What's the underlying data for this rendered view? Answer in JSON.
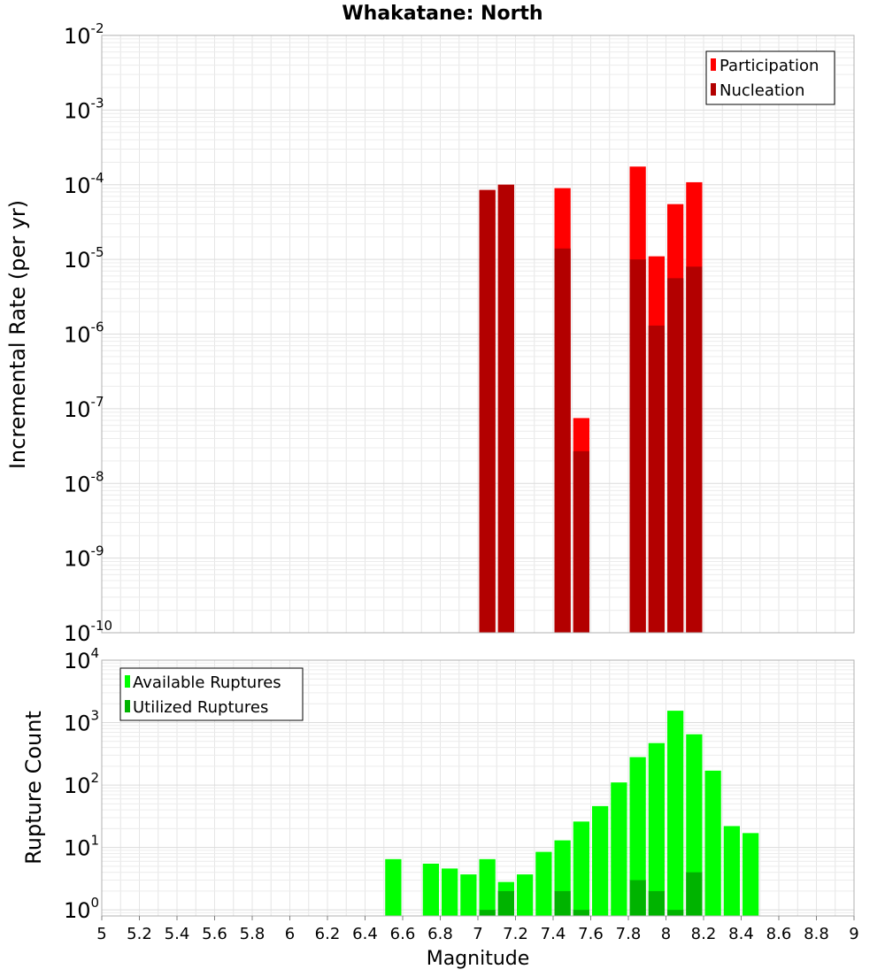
{
  "chart_data": [
    {
      "type": "bar",
      "title": "Whakatane: North",
      "ylabel": "Incremental Rate (per yr)",
      "xlabel": "",
      "yscale": "log",
      "ylim": [
        1e-10,
        0.01
      ],
      "xlim": [
        5,
        9
      ],
      "grid": true,
      "legend_position": "top-right",
      "ytick_labels": [
        {
          "base": "10",
          "exp": "-10"
        },
        {
          "base": "10",
          "exp": "-9"
        },
        {
          "base": "10",
          "exp": "-8"
        },
        {
          "base": "10",
          "exp": "-7"
        },
        {
          "base": "10",
          "exp": "-6"
        },
        {
          "base": "10",
          "exp": "-5"
        },
        {
          "base": "10",
          "exp": "-4"
        },
        {
          "base": "10",
          "exp": "-3"
        },
        {
          "base": "10",
          "exp": "-2"
        }
      ],
      "series": [
        {
          "name": "Participation",
          "color": "#ff0000",
          "x": [
            7.05,
            7.15,
            7.45,
            7.55,
            7.85,
            7.95,
            8.05,
            8.15
          ],
          "values": [
            8.5e-05,
            0.0001,
            9e-05,
            7.5e-08,
            0.000175,
            1.1e-05,
            5.5e-05,
            0.000108
          ]
        },
        {
          "name": "Nucleation",
          "color": "#b30000",
          "x": [
            7.05,
            7.15,
            7.45,
            7.55,
            7.85,
            7.95,
            8.05,
            8.15
          ],
          "values": [
            8.5e-05,
            0.0001,
            1.4e-05,
            2.7e-08,
            1e-05,
            1.3e-06,
            5.6e-06,
            8e-06
          ]
        }
      ]
    },
    {
      "type": "bar",
      "title": "",
      "ylabel": "Rupture Count",
      "xlabel": "Magnitude",
      "yscale": "log",
      "ylim": [
        0.8,
        10000
      ],
      "xlim": [
        5,
        9
      ],
      "grid": true,
      "legend_position": "top-left",
      "ytick_labels": [
        {
          "base": "10",
          "exp": "0"
        },
        {
          "base": "10",
          "exp": "1"
        },
        {
          "base": "10",
          "exp": "2"
        },
        {
          "base": "10",
          "exp": "3"
        },
        {
          "base": "10",
          "exp": "4"
        }
      ],
      "xtick_labels": [
        "5",
        "5.2",
        "5.4",
        "5.6",
        "5.8",
        "6",
        "6.2",
        "6.4",
        "6.6",
        "6.8",
        "7",
        "7.2",
        "7.4",
        "7.6",
        "7.8",
        "8",
        "8.2",
        "8.4",
        "8.6",
        "8.8",
        "9"
      ],
      "series": [
        {
          "name": "Available Ruptures",
          "color": "#00ff00",
          "x": [
            6.55,
            6.75,
            6.85,
            6.95,
            7.05,
            7.15,
            7.25,
            7.35,
            7.45,
            7.55,
            7.65,
            7.75,
            7.85,
            7.95,
            8.05,
            8.15,
            8.25,
            8.35,
            8.45
          ],
          "values": [
            6.5,
            5.5,
            4.6,
            3.7,
            6.5,
            2.8,
            3.7,
            8.5,
            13,
            26,
            46,
            110,
            280,
            470,
            1550,
            650,
            170,
            22,
            17
          ]
        },
        {
          "name": "Utilized Ruptures",
          "color": "#00b300",
          "x": [
            7.05,
            7.15,
            7.45,
            7.55,
            7.85,
            7.95,
            8.05,
            8.15
          ],
          "values": [
            1,
            2,
            2,
            1,
            3,
            2,
            1,
            4
          ]
        }
      ]
    }
  ]
}
